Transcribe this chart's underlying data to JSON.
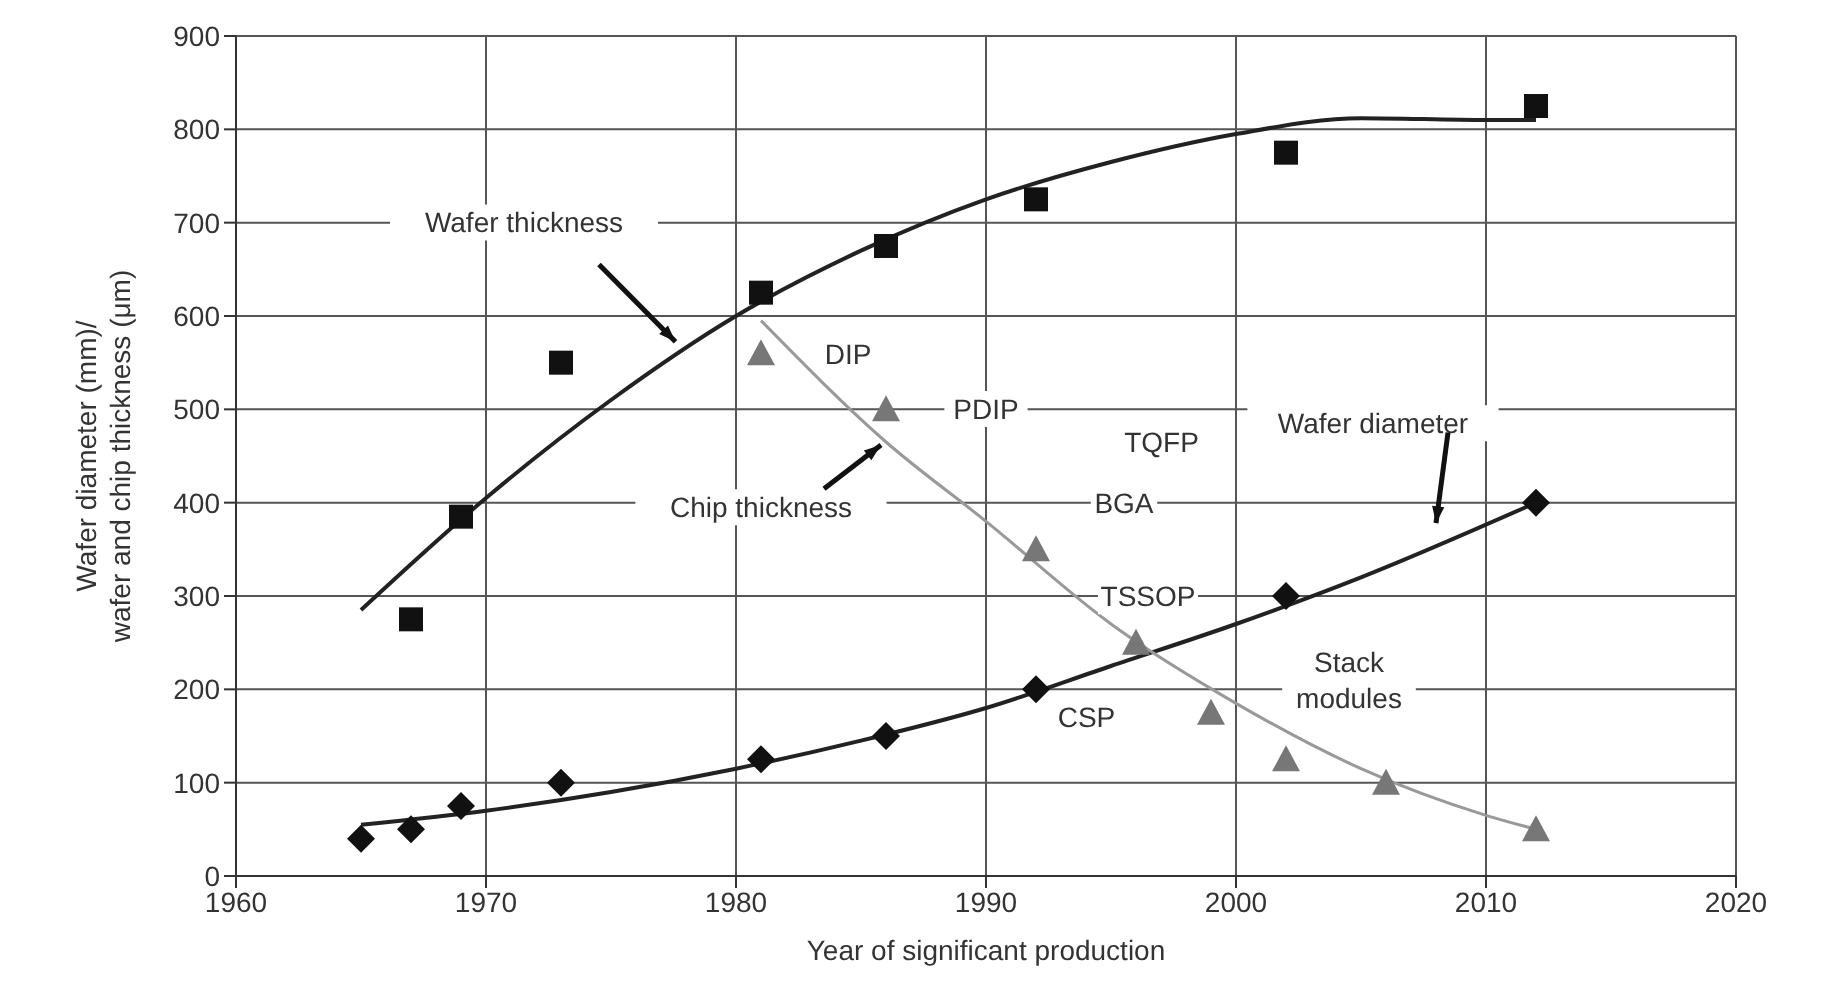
{
  "chart_data": {
    "type": "scatter",
    "xlabel": "Year of significant production",
    "ylabel": "Wafer diameter (mm)/\nwafer and chip thickness (μm)",
    "xlim": [
      1960,
      2020
    ],
    "xticks": [
      1960,
      1970,
      1980,
      1990,
      2000,
      2010,
      2020
    ],
    "ylim": [
      0,
      900
    ],
    "yticks": [
      0,
      100,
      200,
      300,
      400,
      500,
      600,
      700,
      800,
      900
    ],
    "grid": true,
    "legend": false,
    "series": [
      {
        "marker": "square",
        "color": "#111111",
        "x": [
          1967,
          1969,
          1973,
          1981,
          1986,
          1992,
          2002,
          2012
        ],
        "values": [
          275,
          385,
          550,
          625,
          675,
          725,
          775,
          825
        ]
      },
      {
        "marker": "diamond",
        "color": "#111111",
        "x": [
          1965,
          1967,
          1969,
          1973,
          1981,
          1986,
          1992,
          2002,
          2012
        ],
        "values": [
          40,
          50,
          75,
          100,
          125,
          150,
          200,
          300,
          400
        ]
      },
      {
        "marker": "triangle",
        "color": "#777777",
        "x": [
          1981,
          1986,
          1992,
          1996,
          1999,
          2002,
          2006,
          2012
        ],
        "values": [
          560,
          500,
          350,
          250,
          175,
          125,
          100,
          50
        ]
      },
      {
        "type": "line",
        "marker": "none",
        "color": "#222222",
        "x": [
          1965,
          1970,
          1975,
          1980,
          1985,
          1990,
          1995,
          2000,
          2005,
          2010,
          2012
        ],
        "values": [
          285,
          405,
          510,
          600,
          670,
          725,
          765,
          795,
          812,
          810,
          810
        ]
      },
      {
        "type": "line",
        "marker": "none",
        "color": "#222222",
        "x": [
          1965,
          1970,
          1975,
          1980,
          1985,
          1990,
          1995,
          2000,
          2005,
          2012
        ],
        "values": [
          55,
          70,
          90,
          115,
          145,
          180,
          225,
          270,
          320,
          400
        ]
      },
      {
        "type": "line",
        "marker": "none",
        "color": "#999999",
        "x": [
          1981,
          1986,
          1990,
          1995,
          2000,
          2005,
          2010,
          2012
        ],
        "values": [
          595,
          465,
          380,
          270,
          185,
          115,
          65,
          50
        ]
      }
    ],
    "annotations": [
      "Wafer thickness",
      "Chip thickness",
      "Wafer diameter",
      "DIP",
      "PDIP",
      "TQFP",
      "BGA",
      "TSSOP",
      "CSP",
      "Stack\nmodules"
    ]
  }
}
